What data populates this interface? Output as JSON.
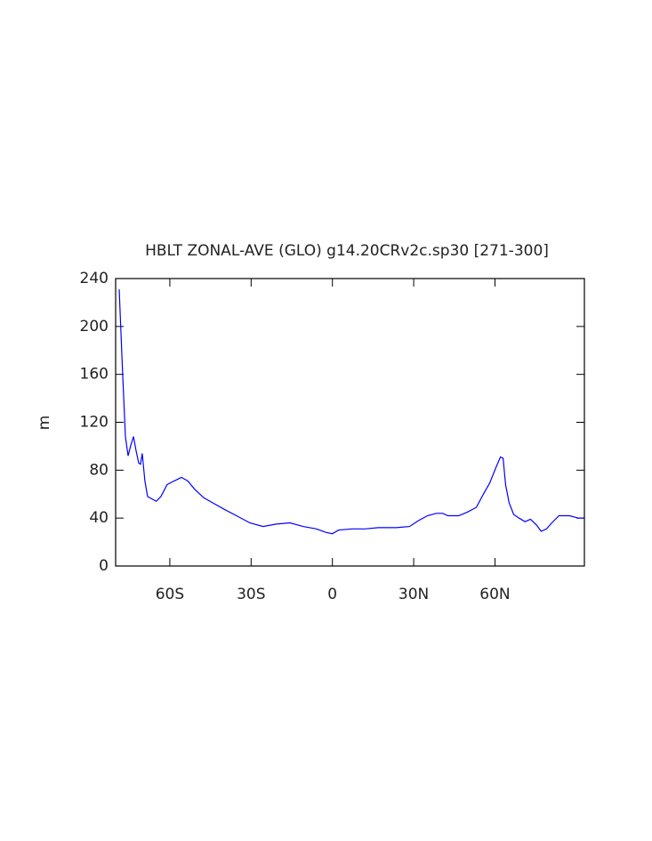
{
  "chart_data": {
    "type": "line",
    "title": "HBLT ZONAL-AVE (GLO) g14.20CRv2c.sp30 [271-300]",
    "y_label": "m",
    "x": [
      -78.7,
      -77.4,
      -76.4,
      -75.4,
      -74.4,
      -73.4,
      -72.5,
      -71.5,
      -70.8,
      -70.2,
      -69.2,
      -68.2,
      -66.6,
      -65,
      -63.3,
      -61,
      -58.4,
      -55.7,
      -53.4,
      -50.8,
      -47.5,
      -43.6,
      -39.7,
      -35.4,
      -30.5,
      -25.6,
      -20.7,
      -15.7,
      -10.8,
      -5.9,
      -2.3,
      0,
      2.3,
      7.2,
      12,
      17,
      23.6,
      28.5,
      31.8,
      35.1,
      38.4,
      40.7,
      42.6,
      46.6,
      49.8,
      53.1,
      55.7,
      58,
      60.3,
      62,
      63,
      63.9,
      65.2,
      66.9,
      68.9,
      71.1,
      73.1,
      75.4,
      77,
      79,
      81,
      83.6,
      87.5,
      90.8,
      92.8
    ],
    "series": [
      {
        "name": "HBLT",
        "color": "#0000ff",
        "values": [
          231,
          160,
          108,
          92,
          101,
          108,
          97,
          86,
          85,
          94,
          71,
          58,
          56,
          54,
          58,
          68,
          71,
          74,
          71,
          64,
          57,
          52,
          47,
          42,
          36,
          33,
          35,
          36,
          33,
          31,
          28,
          27,
          30,
          31,
          31,
          32,
          32,
          33,
          38,
          42,
          44,
          44,
          42,
          42,
          45,
          49,
          60,
          69,
          82,
          91,
          90,
          68,
          53,
          43,
          40,
          37,
          39,
          34,
          29,
          31,
          36,
          42,
          42,
          40,
          40
        ]
      }
    ],
    "xlim": [
      -80,
      93
    ],
    "xticks": [
      {
        "value": -60,
        "label": "60S"
      },
      {
        "value": -30,
        "label": "30S"
      },
      0,
      {
        "value": 30,
        "label": "30N"
      },
      {
        "value": 60,
        "label": "60N"
      }
    ],
    "ylim": [
      0,
      240
    ],
    "yticks": [
      0,
      40,
      80,
      120,
      160,
      200,
      240
    ]
  }
}
